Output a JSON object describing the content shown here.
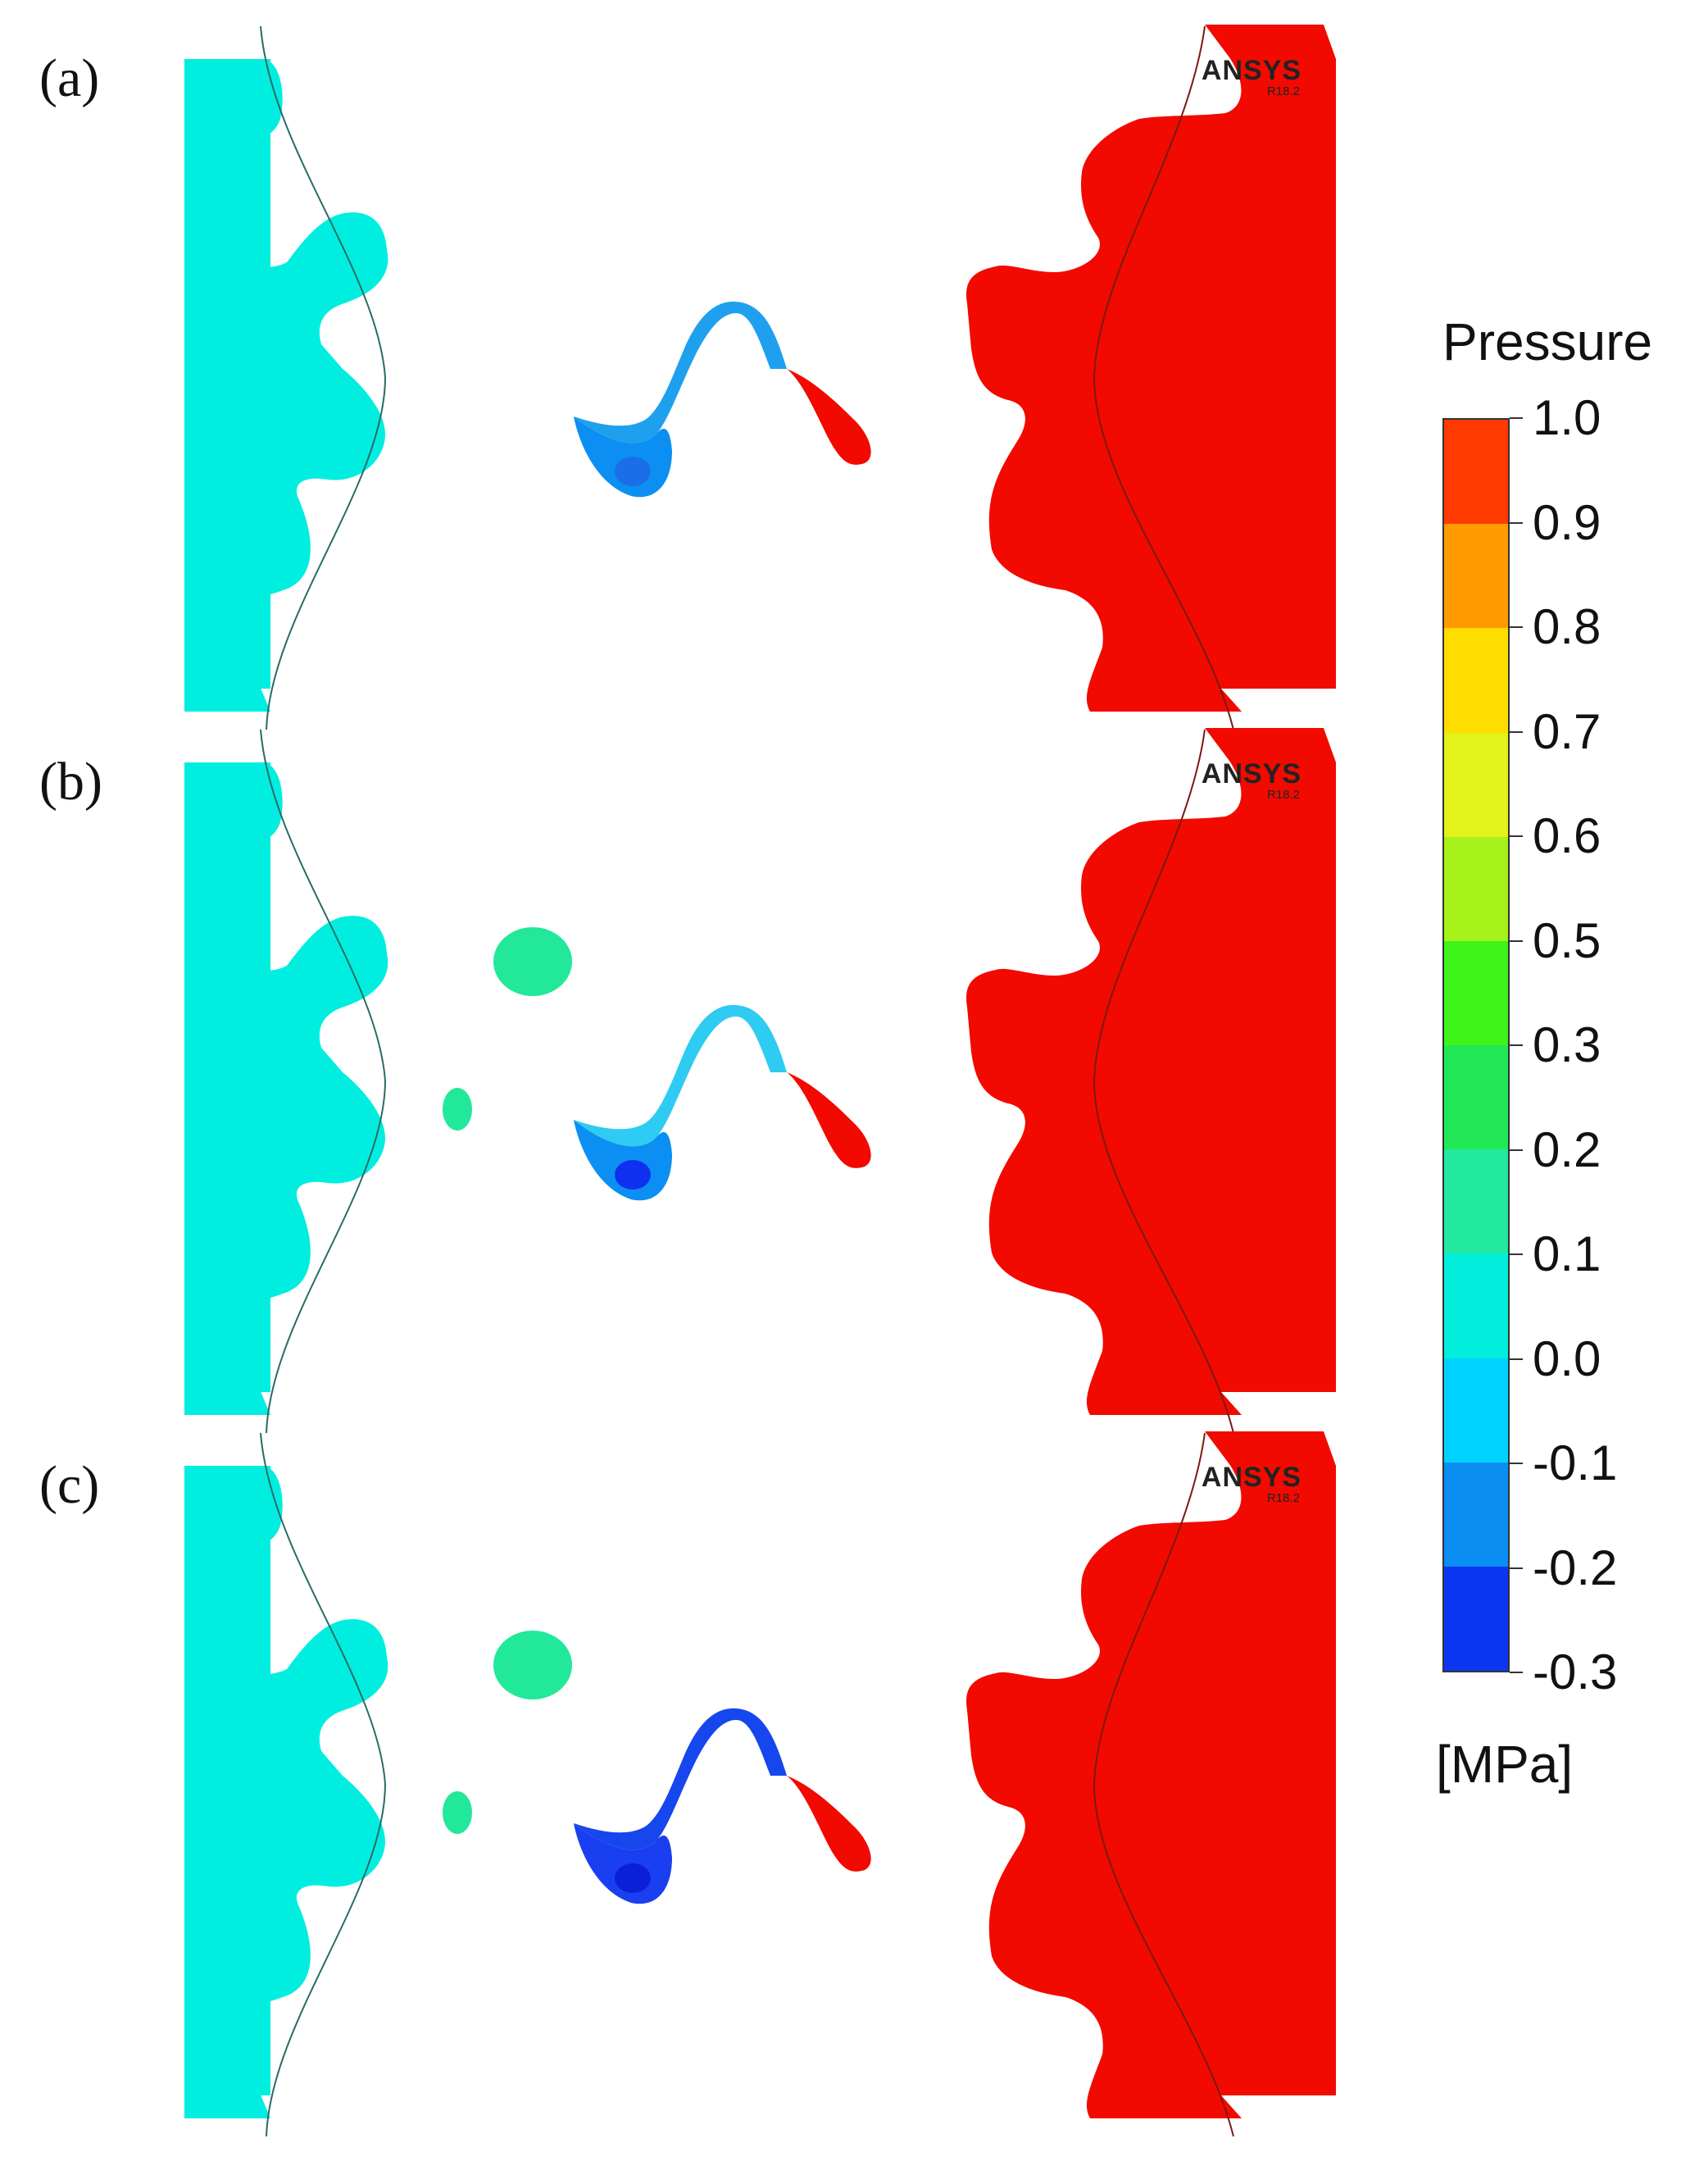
{
  "panels": [
    {
      "label": "(a)",
      "logo": "ANSYS",
      "logo_version": "R18.2",
      "suction_blob": false,
      "low_pocket_color": "#0b8ff2",
      "low_core_color": "#1a6fe8",
      "tip_color": "#1fa0ef"
    },
    {
      "label": "(b)",
      "logo": "ANSYS",
      "logo_version": "R18.2",
      "suction_blob": true,
      "low_pocket_color": "#0b8ff2",
      "low_core_color": "#1030f0",
      "tip_color": "#2ecbf2"
    },
    {
      "label": "(c)",
      "logo": "ANSYS",
      "logo_version": "R18.2",
      "suction_blob": true,
      "low_pocket_color": "#1a3ff0",
      "low_core_color": "#0a1fd8",
      "tip_color": "#1646ee"
    }
  ],
  "colors": {
    "left_region": "#00eee0",
    "right_region": "#f20a00",
    "mid_green": "#22e89a"
  },
  "legend": {
    "title": "Pressure",
    "unit": "[MPa]",
    "levels": [
      "1.0",
      "0.9",
      "0.8",
      "0.7",
      "0.6",
      "0.5",
      "0.3",
      "0.2",
      "0.1",
      "0.0",
      "-0.1",
      "-0.2",
      "-0.3"
    ],
    "bands": [
      "#ff3a00",
      "#ff9a00",
      "#ffdd00",
      "#e2f21a",
      "#a6f21a",
      "#3df51a",
      "#22e858",
      "#22e8a0",
      "#00eedb",
      "#00d2ff",
      "#0a8ef2",
      "#0a36f2"
    ]
  }
}
